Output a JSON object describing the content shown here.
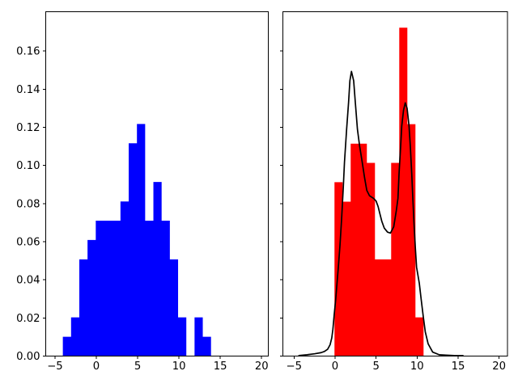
{
  "figure": {
    "background": "#ffffff",
    "frame_color": "#000000"
  },
  "chart_data": [
    {
      "id": "left",
      "type": "bar",
      "subtype": "histogram-density",
      "series_name": "blue-histogram",
      "bar_color": "#0000ff",
      "title": "",
      "xlabel": "",
      "ylabel": "",
      "grid": false,
      "legend": null,
      "xlim": [
        -6.12,
        20.81
      ],
      "ylim": [
        0,
        0.1806
      ],
      "bin_edges": [
        -4.05,
        -3.054,
        -2.058,
        -1.062,
        -0.066,
        0.93,
        1.926,
        2.922,
        3.918,
        4.914,
        5.91,
        6.906,
        7.902,
        8.898,
        9.894,
        10.89,
        11.886,
        12.882,
        13.878
      ],
      "densities": [
        0.0101,
        0.0203,
        0.0507,
        0.0609,
        0.071,
        0.071,
        0.071,
        0.0811,
        0.1116,
        0.1217,
        0.071,
        0.0913,
        0.071,
        0.0507,
        0.0203,
        0.0,
        0.0203,
        0.0101
      ],
      "xticks": {
        "values": [
          -5,
          0,
          5,
          10,
          15,
          20
        ],
        "labels": [
          "−5",
          "0",
          "5",
          "10",
          "15",
          "20"
        ]
      },
      "yticks": {
        "values": [
          0.0,
          0.02,
          0.04,
          0.06,
          0.08,
          0.1,
          0.12,
          0.14,
          0.16
        ],
        "labels": [
          "0.00",
          "0.02",
          "0.04",
          "0.06",
          "0.08",
          "0.10",
          "0.12",
          "0.14",
          "0.16"
        ]
      }
    },
    {
      "id": "right",
      "type": "bar",
      "subtype": "histogram-density-with-kde",
      "series_name": "red-histogram",
      "bar_color": "#ff0000",
      "kde_color": "#000000",
      "title": "",
      "xlabel": "",
      "ylabel": "",
      "grid": false,
      "legend": null,
      "xlim": [
        -6.36,
        21.02
      ],
      "ylim": [
        0,
        0.1806
      ],
      "bin_edges": [
        -0.069,
        0.918,
        1.905,
        2.892,
        3.879,
        4.866,
        5.853,
        6.84,
        7.827,
        8.814,
        9.801,
        10.788
      ],
      "densities": [
        0.0912,
        0.081,
        0.1114,
        0.1114,
        0.1013,
        0.0507,
        0.0507,
        0.1013,
        0.1722,
        0.1216,
        0.0203
      ],
      "kde_points": [
        [
          -4.4,
          0.0003
        ],
        [
          -3.4,
          0.0007
        ],
        [
          -2.5,
          0.0012
        ],
        [
          -1.7,
          0.0018
        ],
        [
          -1.3,
          0.0024
        ],
        [
          -0.9,
          0.0036
        ],
        [
          -0.6,
          0.006
        ],
        [
          -0.4,
          0.0095
        ],
        [
          -0.26,
          0.0141
        ],
        [
          -0.1,
          0.0219
        ],
        [
          0.08,
          0.0297
        ],
        [
          0.24,
          0.0382
        ],
        [
          0.4,
          0.0466
        ],
        [
          0.6,
          0.058
        ],
        [
          0.8,
          0.072
        ],
        [
          1.0,
          0.088
        ],
        [
          1.15,
          0.1017
        ],
        [
          1.41,
          0.1189
        ],
        [
          1.65,
          0.1331
        ],
        [
          1.81,
          0.1444
        ],
        [
          2.0,
          0.1493
        ],
        [
          2.27,
          0.1444
        ],
        [
          2.47,
          0.1331
        ],
        [
          2.73,
          0.1189
        ],
        [
          3.0,
          0.11
        ],
        [
          3.3,
          0.102
        ],
        [
          3.6,
          0.0935
        ],
        [
          3.87,
          0.0869
        ],
        [
          4.2,
          0.0841
        ],
        [
          4.7,
          0.0827
        ],
        [
          5.0,
          0.0813
        ],
        [
          5.25,
          0.0784
        ],
        [
          5.45,
          0.0749
        ],
        [
          5.7,
          0.0707
        ],
        [
          6.0,
          0.0671
        ],
        [
          6.4,
          0.065
        ],
        [
          6.75,
          0.0645
        ],
        [
          7.15,
          0.0678
        ],
        [
          7.47,
          0.0763
        ],
        [
          7.67,
          0.0828
        ],
        [
          7.8,
          0.0955
        ],
        [
          7.99,
          0.1096
        ],
        [
          8.13,
          0.1206
        ],
        [
          8.35,
          0.129
        ],
        [
          8.56,
          0.1328
        ],
        [
          8.78,
          0.13
        ],
        [
          9.02,
          0.1206
        ],
        [
          9.18,
          0.1096
        ],
        [
          9.35,
          0.0955
        ],
        [
          9.46,
          0.0848
        ],
        [
          9.62,
          0.07
        ],
        [
          9.8,
          0.056
        ],
        [
          9.94,
          0.0466
        ],
        [
          10.27,
          0.0382
        ],
        [
          10.5,
          0.0297
        ],
        [
          10.76,
          0.0205
        ],
        [
          11.0,
          0.0127
        ],
        [
          11.35,
          0.0064
        ],
        [
          11.9,
          0.0021
        ],
        [
          12.7,
          0.0007
        ],
        [
          13.5,
          0.0005
        ],
        [
          14.5,
          0.0003
        ],
        [
          15.6,
          0.0002
        ]
      ],
      "xticks": {
        "values": [
          -5,
          0,
          5,
          10,
          15,
          20
        ],
        "labels": [
          "−5",
          "0",
          "5",
          "10",
          "15",
          "20"
        ]
      },
      "yticks": {
        "values": [
          0.0,
          0.02,
          0.04,
          0.06,
          0.08,
          0.1,
          0.12,
          0.14,
          0.16
        ],
        "labels": []
      }
    }
  ]
}
